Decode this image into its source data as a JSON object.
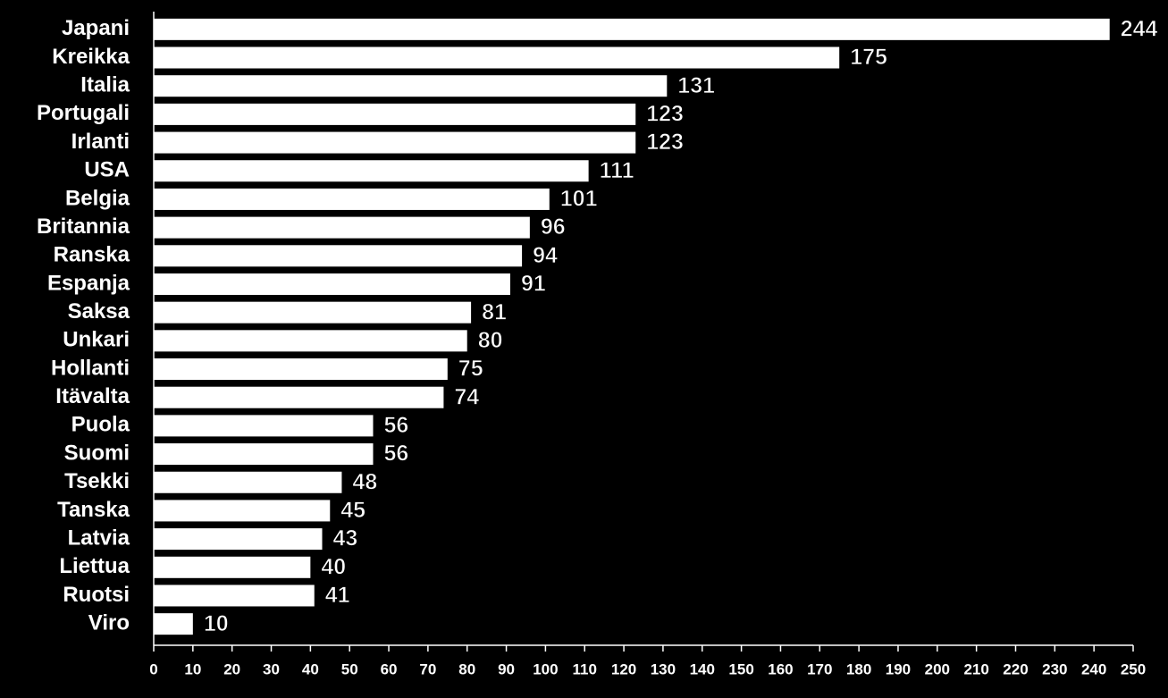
{
  "chart_data": {
    "type": "bar",
    "orientation": "horizontal",
    "categories": [
      "Japani",
      "Kreikka",
      "Italia",
      "Portugali",
      "Irlanti",
      "USA",
      "Belgia",
      "Britannia",
      "Ranska",
      "Espanja",
      "Saksa",
      "Unkari",
      "Hollanti",
      "Itävalta",
      "Puola",
      "Suomi",
      "Tsekki",
      "Tanska",
      "Latvia",
      "Liettua",
      "Ruotsi",
      "Viro"
    ],
    "values": [
      244,
      175,
      131,
      123,
      123,
      111,
      101,
      96,
      94,
      91,
      81,
      80,
      75,
      74,
      56,
      56,
      48,
      45,
      43,
      40,
      41,
      10
    ],
    "color": "#ffffff",
    "xlim": [
      0,
      250
    ],
    "xticks": [
      0,
      10,
      20,
      30,
      40,
      50,
      60,
      70,
      80,
      90,
      100,
      110,
      120,
      130,
      140,
      150,
      160,
      170,
      180,
      190,
      200,
      210,
      220,
      230,
      240,
      250
    ]
  }
}
